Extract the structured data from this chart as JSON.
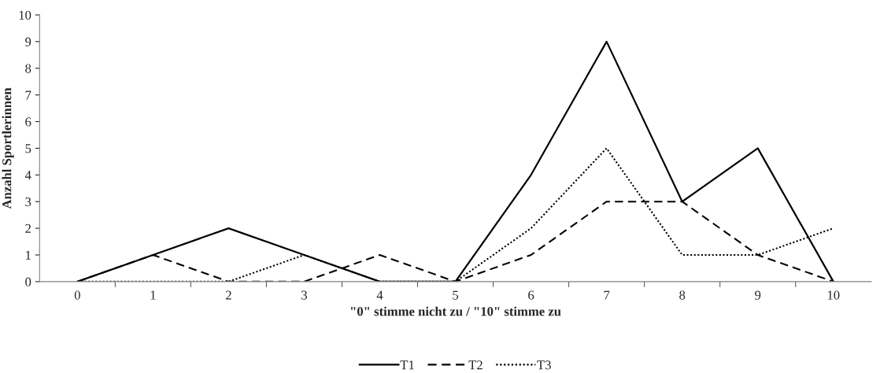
{
  "chart_data": {
    "type": "line",
    "xlabel": "\"0\" stimme nicht zu / \"10\" stimme zu",
    "ylabel": "Anzahl Sportlerinnen",
    "categories": [
      "0",
      "1",
      "2",
      "3",
      "4",
      "5",
      "6",
      "7",
      "8",
      "9",
      "10"
    ],
    "series": [
      {
        "name": "T1",
        "color": "#000000",
        "line_style": "solid",
        "values": [
          0,
          1,
          2,
          1,
          0,
          0,
          4,
          9,
          3,
          5,
          0
        ]
      },
      {
        "name": "T2",
        "color": "#000000",
        "line_style": "dashed",
        "values": [
          0,
          1,
          0,
          0,
          1,
          0,
          1,
          3,
          3,
          1,
          0
        ]
      },
      {
        "name": "T3",
        "color": "#000000",
        "line_style": "dotted",
        "values": [
          0,
          0,
          0,
          1,
          0,
          0,
          2,
          5,
          1,
          1,
          2
        ]
      }
    ],
    "ylim": [
      0,
      10
    ],
    "yticks": [
      0,
      1,
      2,
      3,
      4,
      5,
      6,
      7,
      8,
      9,
      10
    ],
    "grid": false,
    "legend": "bottom",
    "marker": "none"
  }
}
